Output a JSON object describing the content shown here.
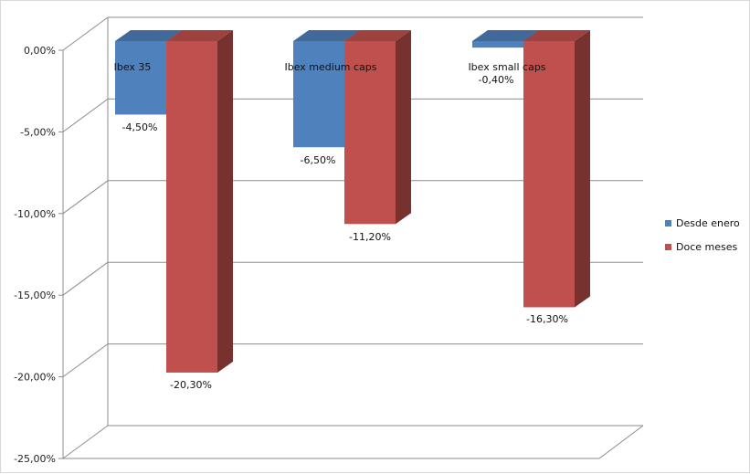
{
  "chart_data": {
    "type": "bar",
    "categories": [
      "Ibex 35",
      "Ibex medium caps",
      "Ibex small caps"
    ],
    "series": [
      {
        "name": "Desde enero",
        "values": [
          -4.5,
          -6.5,
          -0.4
        ],
        "value_labels": [
          "-4,50%",
          "-6,50%",
          "-0,40%"
        ],
        "color": "#4F81BD"
      },
      {
        "name": "Doce meses",
        "values": [
          -20.3,
          -11.2,
          -16.3
        ],
        "value_labels": [
          "-20,30%",
          "-11,20%",
          "-16,30%"
        ],
        "color": "#C0504D"
      }
    ],
    "ylim": [
      -25,
      0
    ],
    "yticks": [
      0,
      -5,
      -10,
      -15,
      -20,
      -25
    ],
    "ytick_labels": [
      "0,00%",
      "-5,00%",
      "-10,00%",
      "-15,00%",
      "-20,00%",
      "-25,00%"
    ],
    "grid": true,
    "legend_position": "right",
    "style": "3d-column"
  }
}
